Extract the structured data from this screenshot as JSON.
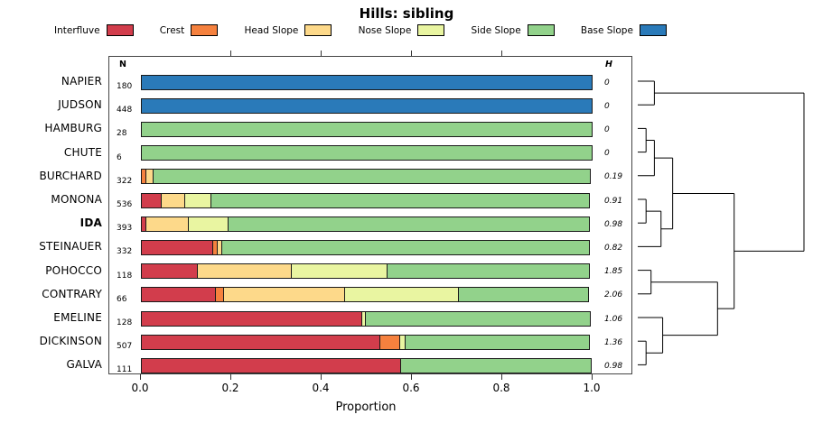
{
  "title": "Hills: sibling",
  "legend": [
    {
      "label": "Interfluve",
      "color": "#d23d4c"
    },
    {
      "label": "Crest",
      "color": "#f5813e"
    },
    {
      "label": "Head Slope",
      "color": "#fdd98a"
    },
    {
      "label": "Nose Slope",
      "color": "#e9f5a1"
    },
    {
      "label": "Side Slope",
      "color": "#92d28b"
    },
    {
      "label": "Base Slope",
      "color": "#2a7ab9"
    }
  ],
  "columns": {
    "n_header": "N",
    "h_header": "H"
  },
  "axis": {
    "xlabel": "Proportion",
    "tick_labels": [
      "0.0",
      "0.2",
      "0.4",
      "0.6",
      "0.8",
      "1.0"
    ],
    "tick_values": [
      0,
      0.2,
      0.4,
      0.6,
      0.8,
      1.0
    ],
    "top_tick_values": [
      0.2,
      0.4,
      0.6,
      0.8
    ],
    "xlim": [
      0,
      1
    ]
  },
  "chart_data": {
    "type": "bar",
    "stacked": true,
    "orientation": "horizontal",
    "title": "Hills: sibling",
    "xlabel": "Proportion",
    "xlim": [
      0,
      1
    ],
    "grid": false,
    "legend_position": "top",
    "series_names": [
      "Interfluve",
      "Crest",
      "Head Slope",
      "Nose Slope",
      "Side Slope",
      "Base Slope"
    ],
    "rows": [
      {
        "name": "NAPIER",
        "n": 180,
        "h": "0",
        "bold": false,
        "values": [
          0,
          0,
          0,
          0,
          0,
          1.0
        ]
      },
      {
        "name": "JUDSON",
        "n": 448,
        "h": "0",
        "bold": false,
        "values": [
          0,
          0,
          0,
          0,
          0,
          1.0
        ]
      },
      {
        "name": "HAMBURG",
        "n": 28,
        "h": "0",
        "bold": false,
        "values": [
          0,
          0,
          0,
          0,
          1.0,
          0
        ]
      },
      {
        "name": "CHUTE",
        "n": 6,
        "h": "0",
        "bold": false,
        "values": [
          0,
          0,
          0,
          0,
          1.0,
          0
        ]
      },
      {
        "name": "BURCHARD",
        "n": 322,
        "h": "0.19",
        "bold": false,
        "values": [
          0,
          0.012,
          0.018,
          0,
          0.97,
          0
        ]
      },
      {
        "name": "MONONA",
        "n": 536,
        "h": "0.91",
        "bold": false,
        "values": [
          0.045,
          0,
          0.055,
          0.06,
          0.84,
          0
        ]
      },
      {
        "name": "IDA",
        "n": 393,
        "h": "0.98",
        "bold": true,
        "values": [
          0.012,
          0,
          0.095,
          0.09,
          0.803,
          0
        ]
      },
      {
        "name": "STEINAUER",
        "n": 332,
        "h": "0.82",
        "bold": false,
        "values": [
          0.16,
          0.012,
          0.012,
          0,
          0.816,
          0
        ]
      },
      {
        "name": "POHOCCO",
        "n": 118,
        "h": "1.85",
        "bold": false,
        "values": [
          0.125,
          0,
          0.21,
          0.215,
          0.45,
          0
        ]
      },
      {
        "name": "CONTRARY",
        "n": 66,
        "h": "2.06",
        "bold": false,
        "values": [
          0.165,
          0.02,
          0.27,
          0.255,
          0.29,
          0
        ]
      },
      {
        "name": "EMELINE",
        "n": 128,
        "h": "1.06",
        "bold": false,
        "values": [
          0.49,
          0,
          0,
          0.01,
          0.5,
          0
        ]
      },
      {
        "name": "DICKINSON",
        "n": 507,
        "h": "1.36",
        "bold": false,
        "values": [
          0.53,
          0.045,
          0,
          0.015,
          0.41,
          0
        ]
      },
      {
        "name": "GALVA",
        "n": 111,
        "h": "0.98",
        "bold": false,
        "values": [
          0.575,
          0,
          0,
          0,
          0.425,
          0
        ]
      }
    ],
    "dendrogram": {
      "merges": [
        {
          "id": "m1",
          "a": "NAPIER",
          "b": "JUDSON",
          "h": 0.1
        },
        {
          "id": "m2",
          "a": "HAMBURG",
          "b": "CHUTE",
          "h": 0.05
        },
        {
          "id": "m3",
          "a": "m2",
          "b": "BURCHARD",
          "h": 0.1
        },
        {
          "id": "m4",
          "a": "MONONA",
          "b": "IDA",
          "h": 0.05
        },
        {
          "id": "m5",
          "a": "m4",
          "b": "STEINAUER",
          "h": 0.14
        },
        {
          "id": "m6",
          "a": "m3",
          "b": "m5",
          "h": 0.21
        },
        {
          "id": "m7",
          "a": "POHOCCO",
          "b": "CONTRARY",
          "h": 0.08
        },
        {
          "id": "m8",
          "a": "DICKINSON",
          "b": "GALVA",
          "h": 0.05
        },
        {
          "id": "m9",
          "a": "EMELINE",
          "b": "m8",
          "h": 0.15
        },
        {
          "id": "m10",
          "a": "m7",
          "b": "m9",
          "h": 0.48
        },
        {
          "id": "m11",
          "a": "m6",
          "b": "m10",
          "h": 0.58
        },
        {
          "id": "m12",
          "a": "m1",
          "b": "m11",
          "h": 1.0
        }
      ]
    }
  }
}
